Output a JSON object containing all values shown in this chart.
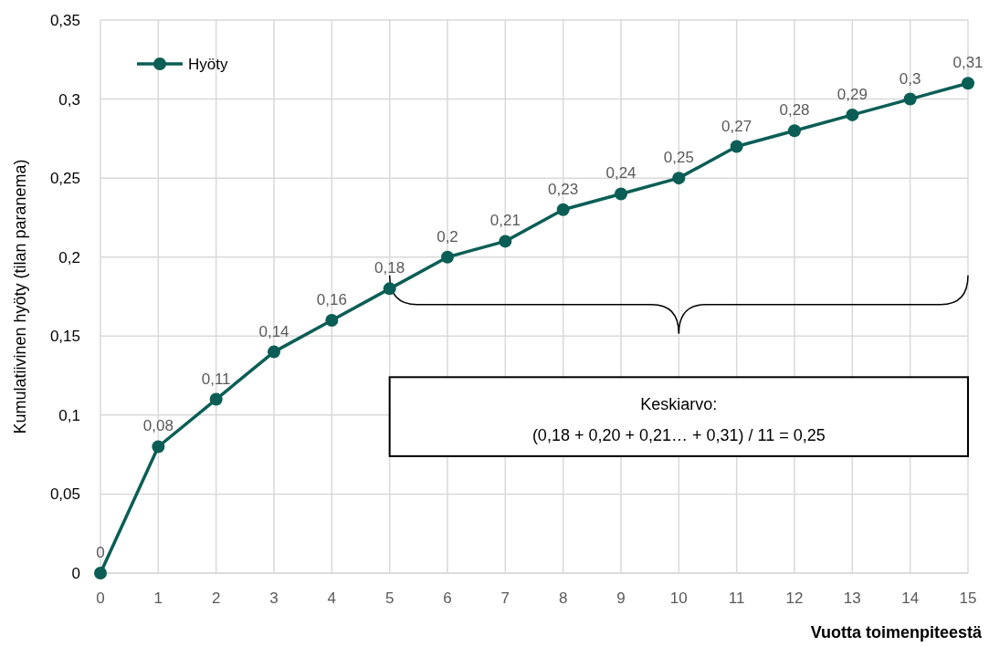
{
  "chart_data": {
    "type": "line",
    "xlabel": "Vuotta toimenpiteestä",
    "ylabel": "Kumulatiivinen hyöty (tilan paranema)",
    "x": [
      0,
      1,
      2,
      3,
      4,
      5,
      6,
      7,
      8,
      9,
      10,
      11,
      12,
      13,
      14,
      15
    ],
    "series": [
      {
        "name": "Hyöty",
        "color": "#0b5e55",
        "values": [
          0,
          0.08,
          0.11,
          0.14,
          0.16,
          0.18,
          0.2,
          0.21,
          0.23,
          0.24,
          0.25,
          0.27,
          0.28,
          0.29,
          0.3,
          0.31
        ],
        "value_labels": [
          "0",
          "0,08",
          "0,11",
          "0,14",
          "0,16",
          "0,18",
          "0,2",
          "0,21",
          "0,23",
          "0,24",
          "0,25",
          "0,27",
          "0,28",
          "0,29",
          "0,3",
          "0,31"
        ]
      }
    ],
    "xlim": [
      0,
      15
    ],
    "xticks": [
      0,
      1,
      2,
      3,
      4,
      5,
      6,
      7,
      8,
      9,
      10,
      11,
      12,
      13,
      14,
      15
    ],
    "ylim": [
      0,
      0.35
    ],
    "yticks": [
      0,
      {
        "value": 0.05,
        "label": "0,05"
      },
      {
        "value": 0.1,
        "label": "0,1"
      },
      {
        "value": 0.15,
        "label": "0,15"
      },
      {
        "value": 0.2,
        "label": "0,2"
      },
      {
        "value": 0.25,
        "label": "0,25"
      },
      {
        "value": 0.3,
        "label": "0,3"
      },
      {
        "value": 0.35,
        "label": "0,35"
      }
    ],
    "grid": true,
    "legend": "top left",
    "marker": "circle",
    "line_style": "solid",
    "annotations": [
      "Keskiarvo:",
      "(0,18 + 0,20 + 0,21… + 0,31) / 11 = 0,25"
    ]
  }
}
